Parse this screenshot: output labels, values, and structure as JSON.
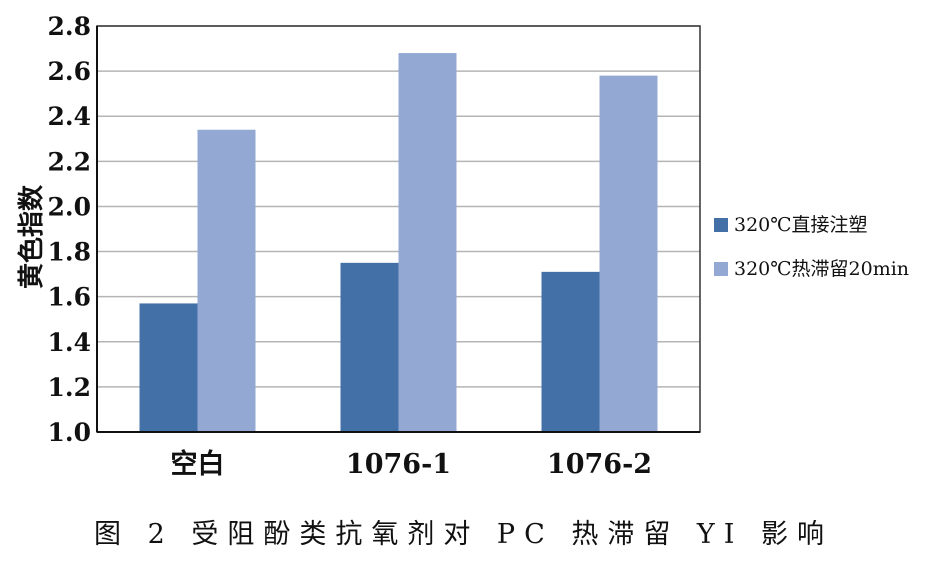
{
  "caption": "图 2   受阻酚类抗氧剂对 PC 热滞留 YI 影响",
  "chart_data": {
    "type": "bar",
    "title": "",
    "xlabel": "",
    "ylabel": "黄色指数",
    "ylim": [
      1.0,
      2.8
    ],
    "yticks": [
      "1.0",
      "1.2",
      "1.4",
      "1.6",
      "1.8",
      "2.0",
      "2.2",
      "2.4",
      "2.6",
      "2.8"
    ],
    "categories": [
      "空白",
      "1076-1",
      "1076-2"
    ],
    "grid": true,
    "legend_position": "right",
    "series": [
      {
        "name": "320℃直接注塑",
        "values": [
          1.57,
          1.75,
          1.71
        ],
        "color": "#4470a8"
      },
      {
        "name": "320℃热滞留20min",
        "values": [
          2.34,
          2.68,
          2.58
        ],
        "color": "#93a9d3"
      }
    ]
  }
}
